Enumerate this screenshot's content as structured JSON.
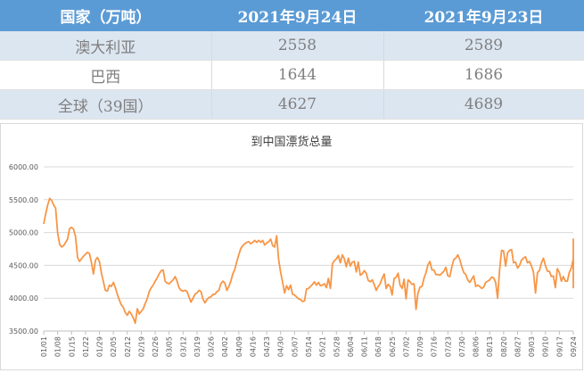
{
  "table": {
    "headers": [
      "国家（万吨）",
      "2021年9月24日",
      "2021年9月23日"
    ],
    "rows": [
      [
        "澳大利亚",
        "2558",
        "2589"
      ],
      [
        "巴西",
        "1644",
        "1686"
      ],
      [
        "全球（39国）",
        "4627",
        "4689"
      ]
    ]
  },
  "chart_data": {
    "type": "line",
    "title": "到中国漂货总量",
    "xlabel": "",
    "ylabel": "",
    "ylim": [
      3500,
      6000
    ],
    "y_ticks": [
      "6000.00",
      "5500.00",
      "5000.00",
      "4500.00",
      "4000.00",
      "3500.00"
    ],
    "x_tick_labels": [
      "01/01",
      "01/08",
      "01/15",
      "01/22",
      "01/29",
      "02/05",
      "02/12",
      "02/19",
      "02/26",
      "03/05",
      "03/12",
      "03/19",
      "03/26",
      "04/02",
      "04/09",
      "04/16",
      "04/23",
      "04/30",
      "05/07",
      "05/14",
      "05/21",
      "05/28",
      "06/04",
      "06/11",
      "06/18",
      "06/25",
      "07/02",
      "07/09",
      "07/16",
      "07/23",
      "07/30",
      "08/06",
      "08/13",
      "08/20",
      "08/27",
      "09/03",
      "09/10",
      "09/17",
      "09/24"
    ],
    "grid": true,
    "line_color": "#f79646",
    "series": [
      {
        "x_start": "01/01",
        "step_days": 1,
        "values": [
          5130,
          5280,
          5420,
          5520,
          5490,
          5420,
          5370,
          5000,
          4820,
          4780,
          4800,
          4850,
          4900,
          5060,
          5080,
          5050,
          4940,
          4620,
          4560,
          4600,
          4640,
          4670,
          4700,
          4680,
          4540,
          4370,
          4580,
          4620,
          4560,
          4380,
          4250,
          4120,
          4110,
          4200,
          4180,
          4240,
          4160,
          4060,
          3970,
          3900,
          3860,
          3780,
          3740,
          3800,
          3760,
          3700,
          3620,
          3840,
          3760,
          3800,
          3840,
          3920,
          3990,
          4100,
          4160,
          4200,
          4260,
          4310,
          4370,
          4420,
          4430,
          4260,
          4230,
          4220,
          4250,
          4280,
          4330,
          4260,
          4160,
          4120,
          4110,
          4120,
          4100,
          4020,
          3940,
          4000,
          4060,
          4080,
          4120,
          4100,
          3990,
          3930,
          3980,
          4010,
          4020,
          4060,
          4060,
          4100,
          4120,
          4220,
          4260,
          4230,
          4120,
          4180,
          4260,
          4370,
          4440,
          4560,
          4660,
          4760,
          4800,
          4830,
          4850,
          4860,
          4830,
          4850,
          4880,
          4850,
          4880,
          4850,
          4880,
          4810,
          4840,
          4860,
          4900,
          4800,
          4780,
          4950,
          4590,
          4400,
          4240,
          4080,
          4190,
          4130,
          4200,
          4060,
          4050,
          4020,
          3990,
          3980,
          3950,
          3960,
          4140,
          4150,
          4180,
          4210,
          4250,
          4200,
          4240,
          4190,
          4200,
          4220,
          4160,
          4300,
          4150,
          4520,
          4570,
          4600,
          4650,
          4540,
          4660,
          4600,
          4480,
          4610,
          4490,
          4550,
          4560,
          4400,
          4550,
          4350,
          4370,
          4420,
          4380,
          4270,
          4250,
          4280,
          4210,
          4120,
          4180,
          4220,
          4300,
          4370,
          4150,
          4210,
          4180,
          4050,
          4300,
          4320,
          4380,
          4200,
          4150,
          4290,
          3990,
          4280,
          4250,
          4210,
          4220,
          3830,
          4080,
          4170,
          4180,
          4300,
          4390,
          4510,
          4560,
          4430,
          4430,
          4360,
          4360,
          4350,
          4380,
          4410,
          4470,
          4340,
          4330,
          4480,
          4590,
          4610,
          4660,
          4590,
          4480,
          4390,
          4360,
          4280,
          4240,
          4290,
          4340,
          4180,
          4200,
          4180,
          4150,
          4170,
          4240,
          4260,
          4280,
          4320,
          4310,
          4240,
          4000,
          4440,
          4730,
          4720,
          4490,
          4690,
          4730,
          4740,
          4540,
          4550,
          4460,
          4500,
          4580,
          4610,
          4630,
          4540,
          4560,
          4490,
          4400,
          4080,
          4390,
          4420,
          4540,
          4610,
          4500,
          4410,
          4410,
          4330,
          4340,
          4160,
          4450,
          4390,
          4260,
          4330,
          4260,
          4260,
          4390,
          4460,
          4600,
          4590,
          4730,
          4770,
          4760,
          4830,
          4860,
          4850,
          4840,
          4720,
          4510,
          4370,
          4620,
          4640,
          4590,
          4310,
          4160,
          4480,
          4570,
          4720,
          4860,
          4880,
          4890,
          4840,
          4620,
          4760,
          4640,
          4900,
          4710,
          4660,
          4627
        ]
      }
    ]
  }
}
